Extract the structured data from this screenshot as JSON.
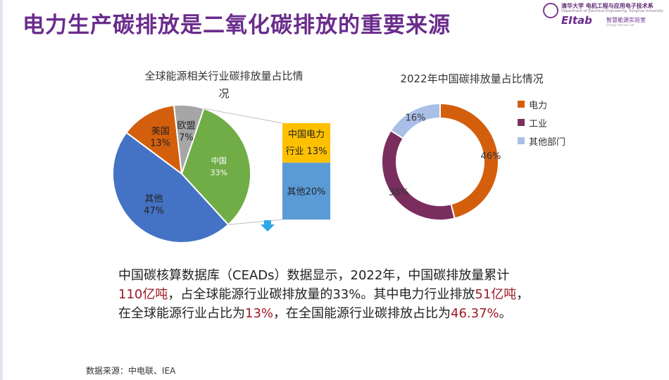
{
  "slide": {
    "title": "电力生产碳排放是二氧化碳排放的重要来源",
    "source": "数据来源：中电联、IEA",
    "logo": {
      "dept_text": "清华大学 电机工程与应用电子技术系",
      "dept_sub": "Department of Electrical Engineering, Tsinghua University",
      "eitab": "EItab",
      "lab_text": "智慧能源实验室",
      "lab_sub": "Energy Internet Lab"
    },
    "body": {
      "line1": "中国碳核算数据库（CEADs）数据显示，2022年，中国碳排放量累计",
      "line2_hl1": "110亿吨",
      "line2_mid": "，占全球能源行业碳排放量的33%。其中电力行业排放",
      "line2_hl2": "51亿吨",
      "line2_end": "，",
      "line3_pre": "在全球能源行业占比为",
      "line3_hl1": "13%",
      "line3_mid": "，在全国能源行业碳排放占比为",
      "line3_hl2": "46.37%",
      "line3_end": "。"
    }
  },
  "chart_data": [
    {
      "type": "pie",
      "title": "全球能源相关行业碳排放量占比情况",
      "title_line1": "全球能源相关行业碳排放量占比情",
      "title_line2": "况",
      "slices": [
        {
          "name": "美国",
          "value": 13,
          "label": "13%",
          "color": "#d35f0d"
        },
        {
          "name": "欧盟",
          "value": 7,
          "label": "7%",
          "color": "#a6a6a6"
        },
        {
          "name": "中国",
          "value": 33,
          "label": "33%",
          "color": "#70ad47"
        },
        {
          "name": "其他",
          "value": 47,
          "label": "47%",
          "color": "#4472c4"
        }
      ],
      "breakdown": {
        "of": "中国",
        "segments": [
          {
            "name": "中国电力行业",
            "name_line1": "中国电力",
            "name_line2": "行业",
            "value": 13,
            "label": "13%",
            "color": "#ffc000"
          },
          {
            "name": "其他",
            "value": 20,
            "label": "20%",
            "color": "#5b9bd5"
          }
        ]
      }
    },
    {
      "type": "pie",
      "subtype": "donut",
      "title": "2022年中国碳排放量占比情况",
      "slices": [
        {
          "name": "电力",
          "value": 46,
          "label": "46%",
          "color": "#d35f0d"
        },
        {
          "name": "工业",
          "value": 38,
          "label": "38%",
          "color": "#7a2e5e"
        },
        {
          "name": "其他部门",
          "value": 16,
          "label": "16%",
          "color": "#a9bfe8"
        }
      ],
      "legend_position": "right"
    }
  ]
}
